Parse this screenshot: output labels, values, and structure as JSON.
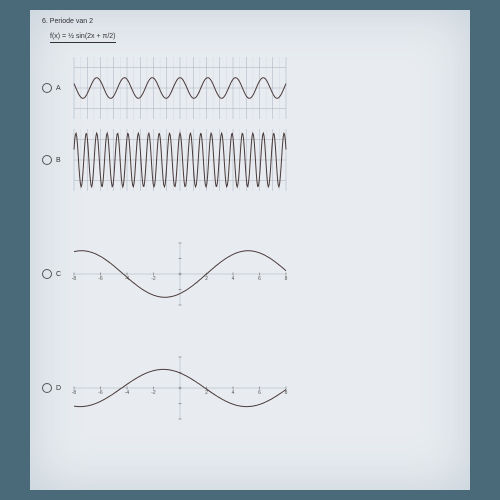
{
  "page": {
    "background_color": "#4a6a7a",
    "paper_color": "#e8ecf0",
    "text_color": "#333333",
    "grid_color": "#a8b0c0",
    "minor_grid_color": "#c8d0dc",
    "curve_color": "#4a3a3a"
  },
  "question": {
    "number": "6.",
    "prompt": "Periode van 2",
    "formula": "f(x) = ½ sin(2x + π/2)"
  },
  "options": [
    {
      "label": "A",
      "type": "sine-plot",
      "xlim": [
        -8,
        8
      ],
      "ylim": [
        -1.5,
        1.5
      ],
      "x_ticks": [
        -8,
        -7,
        -6,
        -5,
        -4,
        -3,
        -2,
        -1,
        0,
        1,
        2,
        3,
        4,
        5,
        6,
        7,
        8
      ],
      "y_ticks": [
        -1,
        0,
        1
      ],
      "amplitude": 0.5,
      "frequency": 3.0,
      "phase": 1.57,
      "grid": true,
      "has_tick_labels": false
    },
    {
      "label": "B",
      "type": "sine-plot",
      "xlim": [
        -8,
        8
      ],
      "ylim": [
        -1.5,
        1.5
      ],
      "x_ticks": [
        -8,
        -7,
        -6,
        -5,
        -4,
        -3,
        -2,
        -1,
        0,
        1,
        2,
        3,
        4,
        5,
        6,
        7,
        8
      ],
      "y_ticks": [
        -1,
        0,
        1
      ],
      "amplitude": 1.3,
      "frequency": 8.0,
      "phase": 1.57,
      "grid": true,
      "has_tick_labels": false
    },
    {
      "label": "C",
      "type": "sine-plot",
      "xlim": [
        -8,
        8
      ],
      "ylim": [
        -2,
        2
      ],
      "x_ticks": [
        -8,
        -6,
        -4,
        -2,
        0,
        2,
        4,
        6,
        8
      ],
      "y_ticks": [
        -2,
        -1,
        0,
        1,
        2
      ],
      "amplitude": 1.5,
      "frequency": 0.5,
      "phase": -1.0,
      "grid": false,
      "has_tick_labels": true
    },
    {
      "label": "D",
      "type": "sine-plot",
      "xlim": [
        -8,
        8
      ],
      "ylim": [
        -2,
        2
      ],
      "x_ticks": [
        -8,
        -6,
        -4,
        -2,
        0,
        2,
        4,
        6,
        8
      ],
      "y_ticks": [
        -2,
        -1,
        0,
        1,
        2
      ],
      "amplitude": 1.2,
      "frequency": 0.5,
      "phase": 2.2,
      "grid": false,
      "has_tick_labels": true
    }
  ]
}
